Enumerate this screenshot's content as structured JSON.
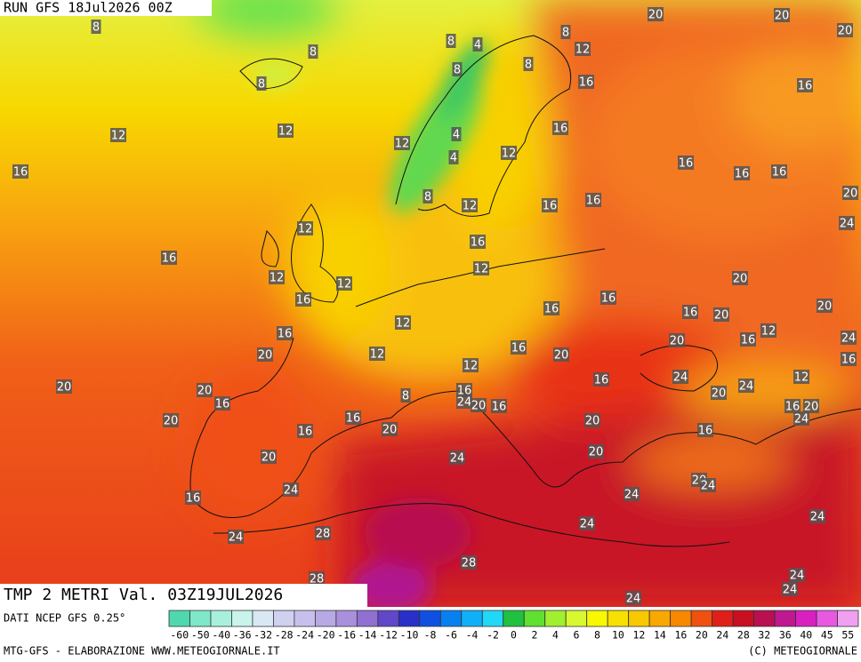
{
  "header": {
    "run": "RUN GFS 18Jul2026 00Z"
  },
  "title": "TMP 2 METRI Val. 03Z19JUL2026",
  "footer": {
    "source": "DATI NCEP GFS 0.25°",
    "credit": "MTG-GFS - ELABORAZIONE WWW.METEOGIORNALE.IT",
    "copyright": "(C) METEOGIORNALE"
  },
  "map": {
    "labels": [
      8,
      8,
      8,
      8,
      4,
      8,
      8,
      8,
      12,
      16,
      20,
      20,
      20,
      16,
      12,
      12,
      12,
      4,
      4,
      12,
      16,
      16,
      16,
      16,
      16,
      8,
      12,
      16,
      16,
      20,
      24,
      12,
      16,
      16,
      12,
      12,
      12,
      20,
      16,
      16,
      12,
      16,
      16,
      20,
      20,
      16,
      12,
      16,
      20,
      24,
      16,
      12,
      20,
      20,
      16,
      12,
      24,
      12,
      20,
      20,
      16,
      8,
      24,
      20,
      16,
      16,
      24,
      20,
      16,
      16,
      20,
      20,
      20,
      24,
      16,
      16,
      20,
      16,
      24,
      20,
      20,
      24,
      20,
      24,
      16,
      24,
      24,
      24,
      24,
      28,
      28,
      24,
      28,
      24,
      24
    ]
  },
  "legend": {
    "ticks": [
      -60,
      -50,
      -40,
      -36,
      -32,
      -28,
      -24,
      -20,
      -16,
      -14,
      -12,
      -10,
      -8,
      -6,
      -4,
      -2,
      0,
      2,
      4,
      6,
      8,
      10,
      12,
      14,
      16,
      20,
      24,
      28,
      32,
      36,
      40,
      45,
      55
    ],
    "colors": [
      "#4fd8b0",
      "#7fe8c8",
      "#a8f0dc",
      "#c8f4ec",
      "#d8e8f4",
      "#d0d0f0",
      "#c8c0ec",
      "#b8a8e4",
      "#a890dc",
      "#9070d0",
      "#6048c8",
      "#2830c8",
      "#1050e0",
      "#0880f0",
      "#10b0f8",
      "#20d8f8",
      "#20c040",
      "#60e030",
      "#a0f030",
      "#d8f830",
      "#f8f800",
      "#f8e000",
      "#f8c800",
      "#f8a800",
      "#f88800",
      "#f05010",
      "#e02018",
      "#c81020",
      "#b81050",
      "#c01890",
      "#d820c0",
      "#e858e0",
      "#f0a0f0"
    ]
  }
}
